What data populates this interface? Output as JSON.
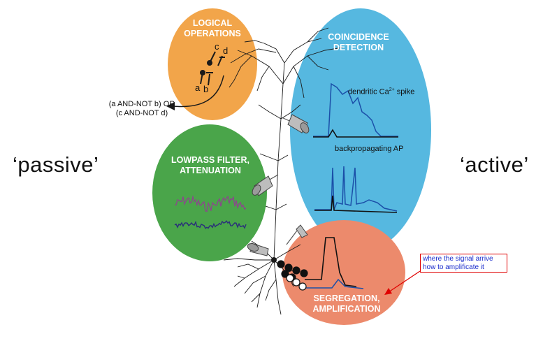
{
  "labels": {
    "passive": "‘passive’",
    "active": "‘active’"
  },
  "bubbles": {
    "logical": {
      "title": "LOGICAL\nOPERATIONS",
      "color": "#f2a54a"
    },
    "coincidence": {
      "title": "COINCIDENCE\nDETECTION",
      "color": "#56b8e0"
    },
    "lowpass": {
      "title": "LOWPASS FILTER,\nATTENUATION",
      "color": "#4aa54a"
    },
    "segregation": {
      "title": "SEGREGATION,\nAMPLIFICATION",
      "color": "#ec8a6c"
    }
  },
  "logic_formula": "(a AND-NOT b) OR\n(c AND-NOT d)",
  "synapse_letters": {
    "a": "a",
    "b": "b",
    "c": "c",
    "d": "d"
  },
  "traces": {
    "dendritic_label": "dendritic Ca",
    "dendritic_sup": "2+",
    "dendritic_suffix": " spike",
    "backprop_label": "backpropagating AP",
    "purple": "#8a4a8a",
    "navy": "#2a2f7a",
    "blue": "#1b4fa8"
  },
  "annotation": {
    "text": "where the signal arrive\nhow to amplificate it",
    "border": "#e00000",
    "text_color": "#1a2ccc"
  }
}
